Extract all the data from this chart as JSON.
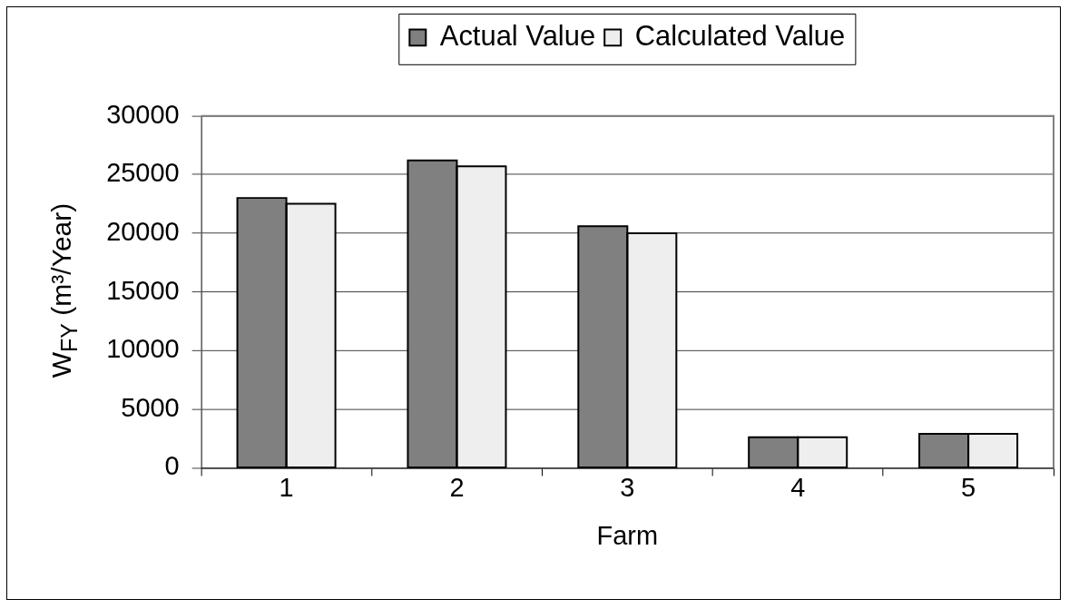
{
  "chart_data": {
    "type": "bar",
    "categories": [
      "1",
      "2",
      "3",
      "4",
      "5"
    ],
    "xlabel": "Farm",
    "ylabel": "W$_{FY}$ (m³/Year)",
    "series": [
      {
        "name": "Actual Value",
        "color": "#808080",
        "values": [
          23000,
          26200,
          20600,
          2600,
          2900
        ]
      },
      {
        "name": "Calculated Value",
        "color": "#eeeeee",
        "values": [
          22500,
          25700,
          20000,
          2600,
          2900
        ]
      }
    ],
    "ylim": [
      0,
      30000
    ],
    "yticks": [
      0,
      5000,
      10000,
      15000,
      20000,
      25000,
      30000
    ],
    "grid": "y",
    "legend": "top"
  }
}
